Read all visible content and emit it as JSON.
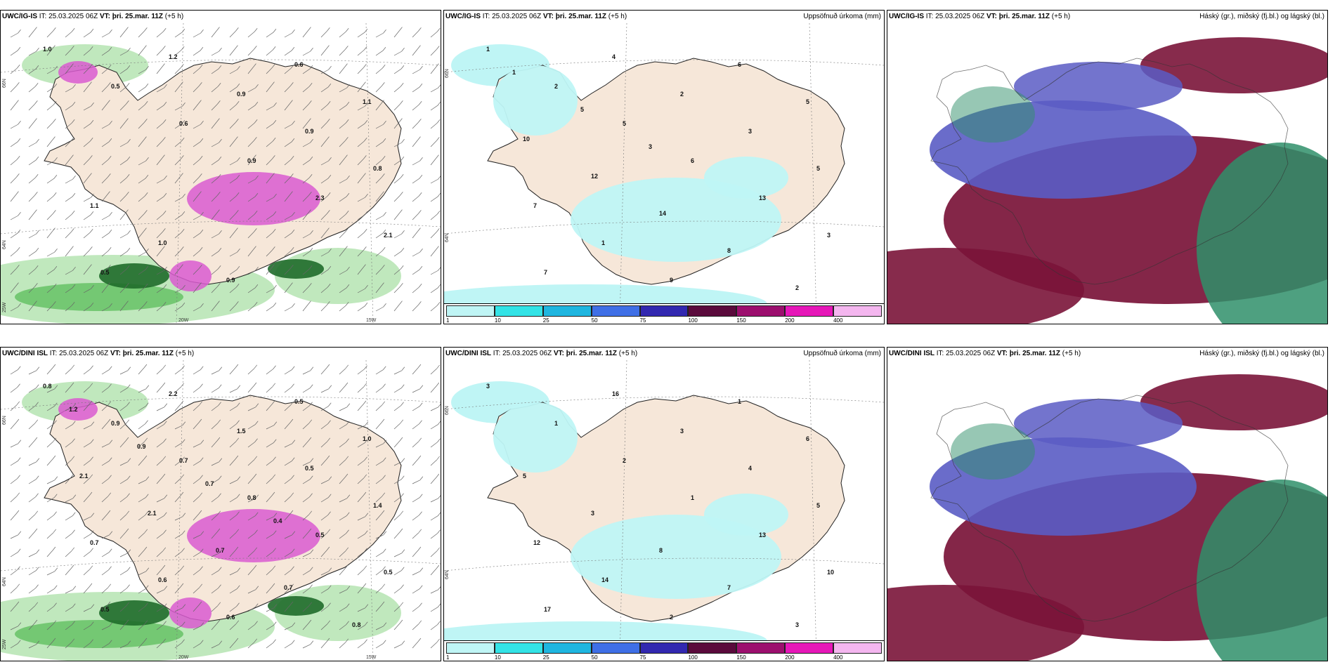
{
  "panels": [
    {
      "id": "r1c1",
      "model": "UWC/IG-IS",
      "it": "IT: 25.03.2025 06Z",
      "vt_label": "VT:",
      "vt": "þri. 25.mar. 11Z",
      "lead": "(+5 h)",
      "right_label": "",
      "kind": "precip-wind",
      "axes": {
        "lat1": "66N",
        "lat2": "64N",
        "lat3": "25W",
        "lon1": "20W",
        "lon2": "15W"
      }
    },
    {
      "id": "r1c2",
      "model": "UWC/IG-IS",
      "it": "IT: 25.03.2025 06Z",
      "vt_label": "VT:",
      "vt": "þri. 25.mar. 11Z",
      "lead": "(+5 h)",
      "right_label": "Uppsöfnuð úrkoma (mm)",
      "kind": "accum",
      "axes": {
        "lat1": "66N",
        "lat2": "64N"
      }
    },
    {
      "id": "r1c3",
      "model": "UWC/IG-IS",
      "it": "IT: 25.03.2025 06Z",
      "vt_label": "VT:",
      "vt": "þri. 25.mar. 11Z",
      "lead": "(+5 h)",
      "right_label": "Háský (gr.), miðský (fj.bl.) og lágský (bl.)",
      "kind": "clouds"
    },
    {
      "id": "r2c1",
      "model": "UWC/DINI ISL",
      "it": "IT: 25.03.2025 06Z",
      "vt_label": "VT:",
      "vt": "þri. 25.mar. 11Z",
      "lead": "(+5 h)",
      "right_label": "",
      "kind": "precip-wind",
      "axes": {
        "lat1": "66N",
        "lat2": "64N",
        "lat3": "25W",
        "lon1": "20W",
        "lon2": "15W"
      }
    },
    {
      "id": "r2c2",
      "model": "UWC/DINI ISL",
      "it": "IT: 25.03.2025 06Z",
      "vt_label": "VT:",
      "vt": "þri. 25.mar. 11Z",
      "lead": "(+5 h)",
      "right_label": "Uppsöfnuð úrkoma (mm)",
      "kind": "accum",
      "axes": {
        "lat1": "66N",
        "lat2": "64N"
      }
    },
    {
      "id": "r2c3",
      "model": "UWC/DINI ISL",
      "it": "IT: 25.03.2025 06Z",
      "vt_label": "VT:",
      "vt": "þri. 25.mar. 11Z",
      "lead": "(+5 h)",
      "right_label": "Háský (gr.), miðský (fj.bl.) og lágský (bl.)",
      "kind": "clouds"
    }
  ],
  "legend": {
    "ticks": [
      "1",
      "10",
      "25",
      "50",
      "75",
      "100",
      "150",
      "200",
      "400"
    ],
    "colors": [
      "#bff5f5",
      "#33e3e6",
      "#1fb6e0",
      "#3f6fe6",
      "#3228b0",
      "#5a0a3c",
      "#9c0f6e",
      "#e617b8",
      "#f4b6ef"
    ]
  },
  "colors": {
    "land": "#f6e7d9",
    "coast": "#222222",
    "precip_light": "#b9e6b6",
    "precip_mid": "#6cc46a",
    "precip_heavy": "#1f6b2a",
    "snow": "#d95ad0",
    "accum_light": "#bff5f5",
    "cloud_high": "#2f8f6a",
    "cloud_mid": "#5a5cc4",
    "cloud_low": "#7a1438"
  },
  "labels": {
    "r1c1": [
      "1.0",
      "0.5",
      "0.6",
      "0.9",
      "2.3",
      "2.1",
      "0.5",
      "1.2",
      "0.9",
      "0.9",
      "0.8",
      "1.1",
      "1.0",
      "0.9",
      "0.6",
      "1.1"
    ],
    "r1c2": [
      "1",
      "2",
      "5",
      "6",
      "13",
      "3",
      "7",
      "4",
      "2",
      "3",
      "5",
      "7",
      "1",
      "9",
      "6",
      "5",
      "10",
      "12",
      "14",
      "8",
      "2",
      "1",
      "5",
      "3"
    ],
    "r2c1": [
      "0.8",
      "0.9",
      "0.7",
      "0.8",
      "0.5",
      "0.5",
      "0.5",
      "2.2",
      "1.5",
      "0.5",
      "1.4",
      "0.7",
      "0.6",
      "0.6",
      "0.5",
      "1.0",
      "2.1",
      "2.1",
      "0.7",
      "0.7",
      "0.8",
      "1.2",
      "0.9",
      "0.7",
      "0.4"
    ],
    "r2c2": [
      "3",
      "1",
      "2",
      "1",
      "13",
      "10",
      "17",
      "16",
      "3",
      "4",
      "5",
      "12",
      "14",
      "2",
      "1",
      "6",
      "5",
      "3",
      "8",
      "7",
      "3"
    ]
  }
}
